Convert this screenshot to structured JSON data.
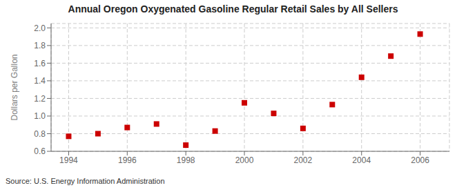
{
  "chart_data": {
    "type": "scatter",
    "title": "Annual Oregon Oxygenated Gasoline Regular Retail Sales by All Sellers",
    "y_label": "Dollars per Gallon",
    "annotations": [
      "Source: U.S. Energy Information Administration"
    ],
    "x": [
      1994,
      1995,
      1996,
      1997,
      1998,
      1999,
      2000,
      2001,
      2002,
      2003,
      2004,
      2005,
      2006
    ],
    "values": [
      0.77,
      0.8,
      0.87,
      0.91,
      0.67,
      0.83,
      1.15,
      1.03,
      0.86,
      1.13,
      1.44,
      1.68,
      1.93
    ],
    "xlim": [
      1993.4,
      2007.0
    ],
    "ylim": [
      0.6,
      2.05
    ],
    "xticks": [
      1994,
      1996,
      1998,
      2000,
      2002,
      2004,
      2006
    ],
    "yticks": [
      0.6,
      0.8,
      {
        "value": 1,
        "label": "1.0"
      },
      1.2,
      1.4,
      1.6,
      1.8,
      {
        "value": 2,
        "label": "2.0"
      }
    ],
    "color": "#cc0000",
    "marker": "square",
    "grid": true
  }
}
